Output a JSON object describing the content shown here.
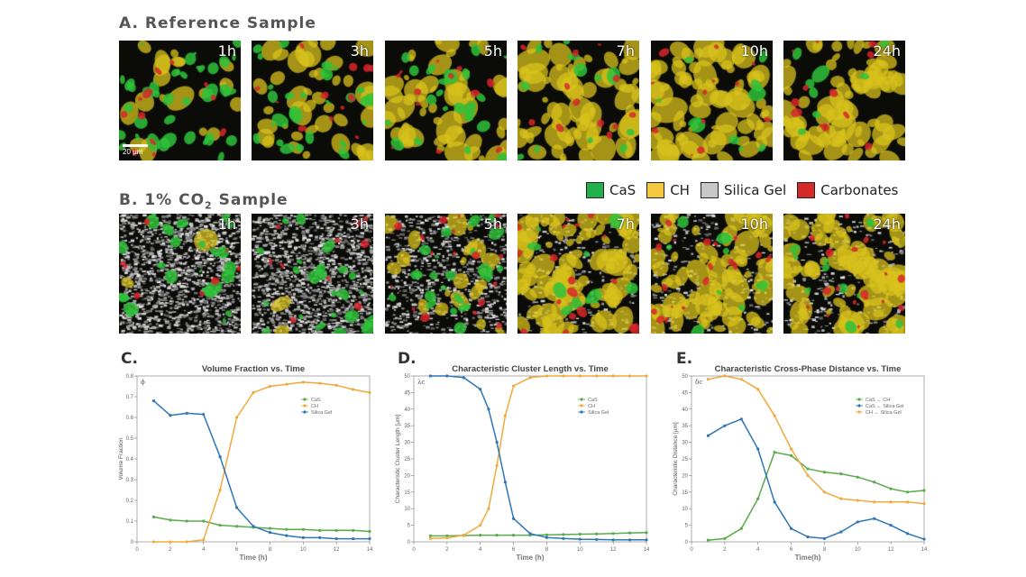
{
  "sections": {
    "a_title": "A. Reference Sample",
    "b_title_prefix": "B. 1% CO",
    "b_title_sub": "2",
    "b_title_suffix": " Sample"
  },
  "scalebar_label": "20 µm",
  "time_labels": [
    "1h",
    "3h",
    "5h",
    "7h",
    "10h",
    "24h"
  ],
  "legend": [
    {
      "label": "CaS",
      "color": "#22b04a"
    },
    {
      "label": "CH",
      "color": "#f5c842"
    },
    {
      "label": "Silica Gel",
      "color": "#c8c8c8"
    },
    {
      "label": "Carbonates",
      "color": "#d42a2a"
    }
  ],
  "colors": {
    "green": "#5aab4a",
    "orange": "#f0aa3c",
    "blue": "#2e75b6"
  },
  "panel_letters": [
    "C.",
    "D.",
    "E."
  ],
  "chart_data": [
    {
      "type": "line",
      "title": "Volume Fraction vs. Time",
      "xlabel": "Time (h)",
      "ylabel": "Volume Fraction",
      "corner_label": "ϕ",
      "xlim": [
        0,
        14
      ],
      "ylim": [
        0,
        0.8
      ],
      "xticks": [
        0,
        2,
        4,
        6,
        8,
        10,
        12,
        14
      ],
      "yticks": [
        0,
        0.1,
        0.2,
        0.3,
        0.4,
        0.5,
        0.6,
        0.7,
        0.8
      ],
      "legend_position": "top-right",
      "series": [
        {
          "name": "CaS",
          "color": "#5aab4a",
          "x": [
            1,
            2,
            3,
            4,
            5,
            6,
            7,
            8,
            9,
            10,
            11,
            12,
            13,
            14
          ],
          "y": [
            0.12,
            0.105,
            0.1,
            0.1,
            0.08,
            0.075,
            0.07,
            0.065,
            0.06,
            0.06,
            0.055,
            0.055,
            0.055,
            0.05
          ]
        },
        {
          "name": "CH",
          "color": "#f0aa3c",
          "x": [
            1,
            2,
            3,
            4,
            5,
            6,
            7,
            8,
            9,
            10,
            11,
            12,
            13,
            14
          ],
          "y": [
            0.0,
            0.0,
            0.0,
            0.01,
            0.25,
            0.6,
            0.72,
            0.75,
            0.76,
            0.77,
            0.765,
            0.755,
            0.735,
            0.72
          ]
        },
        {
          "name": "Silica Gel",
          "color": "#2e75b6",
          "x": [
            1,
            2,
            3,
            4,
            5,
            6,
            7,
            8,
            9,
            10,
            11,
            12,
            13,
            14
          ],
          "y": [
            0.68,
            0.61,
            0.62,
            0.615,
            0.41,
            0.165,
            0.075,
            0.045,
            0.03,
            0.02,
            0.02,
            0.015,
            0.015,
            0.015
          ]
        }
      ]
    },
    {
      "type": "line",
      "title": "Characteristic Cluster Length vs. Time",
      "xlabel": "Time (h)",
      "ylabel": "Characteristic Cluster Length [µm]",
      "corner_label": "λc",
      "xlim": [
        0,
        14
      ],
      "ylim": [
        0,
        50
      ],
      "xticks": [
        0,
        2,
        4,
        6,
        8,
        10,
        12,
        14
      ],
      "yticks": [
        0,
        5,
        10,
        15,
        20,
        25,
        30,
        35,
        40,
        45,
        50
      ],
      "legend_position": "top-right",
      "series": [
        {
          "name": "CaS",
          "color": "#5aab4a",
          "x": [
            1,
            2,
            3,
            4,
            5,
            6,
            7,
            8,
            9,
            10,
            11,
            12,
            13,
            14
          ],
          "y": [
            1.8,
            1.8,
            1.9,
            2.0,
            2.0,
            2.0,
            2.0,
            2.1,
            2.2,
            2.3,
            2.4,
            2.5,
            2.7,
            2.8
          ]
        },
        {
          "name": "CH",
          "color": "#f0aa3c",
          "x": [
            1,
            2,
            3,
            4,
            4.5,
            5,
            5.5,
            6,
            7,
            8,
            9,
            10,
            11,
            12,
            13,
            14
          ],
          "y": [
            1.0,
            1.2,
            2.0,
            5.0,
            10.0,
            23.0,
            38.0,
            47.0,
            49.5,
            50.0,
            50.0,
            50.0,
            50.0,
            50.0,
            50.0,
            50.0
          ]
        },
        {
          "name": "Silica Gel",
          "color": "#2e75b6",
          "x": [
            1,
            2,
            3,
            4,
            4.5,
            5,
            5.5,
            6,
            7,
            8,
            9,
            10,
            11,
            12,
            13,
            14
          ],
          "y": [
            50.0,
            50.0,
            49.5,
            46.0,
            40.0,
            30.0,
            18.0,
            7.0,
            2.5,
            1.3,
            1.0,
            0.8,
            0.7,
            0.6,
            0.6,
            0.6
          ]
        }
      ]
    },
    {
      "type": "line",
      "title": "Characteristic Cross-Phase Distance vs. Time",
      "xlabel": "Time(h)",
      "ylabel": "Characteristic Distance [µm]",
      "corner_label": "δc",
      "xlim": [
        0,
        14
      ],
      "ylim": [
        0,
        50
      ],
      "xticks": [
        0,
        2,
        4,
        6,
        8,
        10,
        12,
        14
      ],
      "yticks": [
        0,
        5,
        10,
        15,
        20,
        25,
        30,
        35,
        40,
        45,
        50
      ],
      "legend_position": "top-right",
      "series": [
        {
          "name": "CaS ↔ CH",
          "color": "#5aab4a",
          "x": [
            1,
            2,
            3,
            4,
            5,
            6,
            7,
            8,
            9,
            10,
            11,
            12,
            13,
            14
          ],
          "y": [
            0.5,
            1.0,
            4.0,
            13.0,
            27.0,
            26.0,
            22.0,
            21.0,
            20.5,
            19.5,
            18.0,
            16.0,
            15.0,
            15.5
          ]
        },
        {
          "name": "CaS ↔ Silica Gel",
          "color": "#2e75b6",
          "x": [
            1,
            2,
            3,
            4,
            5,
            6,
            7,
            8,
            9,
            10,
            11,
            12,
            13,
            14
          ],
          "y": [
            32.0,
            35.0,
            37.0,
            28.0,
            12.0,
            4.0,
            1.5,
            1.0,
            3.0,
            6.0,
            7.0,
            5.0,
            2.5,
            0.8
          ]
        },
        {
          "name": "CH ↔ Silica Gel",
          "color": "#f0aa3c",
          "x": [
            1,
            2,
            3,
            4,
            5,
            6,
            7,
            8,
            9,
            10,
            11,
            12,
            13,
            14
          ],
          "y": [
            49.0,
            50.0,
            49.0,
            46.0,
            38.0,
            28.0,
            20.0,
            15.0,
            13.0,
            12.5,
            12.0,
            12.0,
            12.0,
            11.5
          ]
        }
      ]
    }
  ]
}
